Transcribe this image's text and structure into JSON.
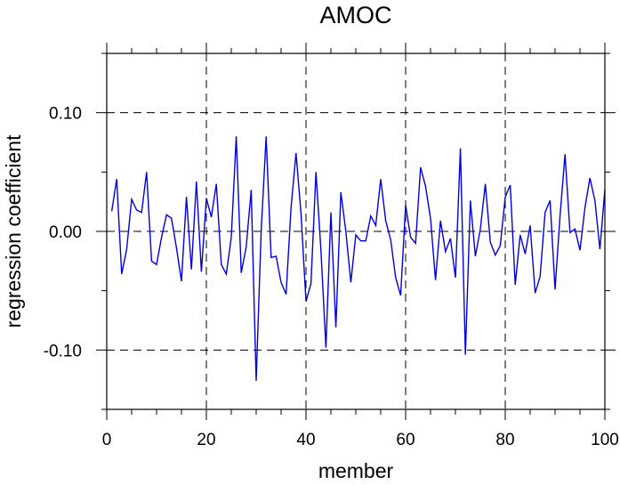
{
  "chart_data": {
    "type": "line",
    "title": "AMOC",
    "xlabel": "member",
    "ylabel": "regression coefficient",
    "xlim": [
      0,
      100
    ],
    "ylim": [
      -0.15,
      0.15
    ],
    "xticks": [
      0,
      20,
      40,
      60,
      80,
      100
    ],
    "xtick_labels": [
      "0",
      "20",
      "40",
      "60",
      "80",
      "100"
    ],
    "yticks": [
      -0.1,
      0.0,
      0.1
    ],
    "ytick_labels": [
      "-0.10",
      "0.00",
      "0.10"
    ],
    "grid": "dashed at major ticks",
    "legend": "none",
    "colors": {
      "line": "#0000dd",
      "grid": "#000000",
      "axes": "#000000"
    },
    "series": [
      {
        "x": [
          1,
          2,
          3,
          4,
          5,
          6,
          7,
          8,
          9,
          10,
          11,
          12,
          13,
          14,
          15,
          16,
          17,
          18,
          19,
          20,
          21,
          22,
          23,
          24,
          25,
          26,
          27,
          28,
          29,
          30,
          31,
          32,
          33,
          34,
          35,
          36,
          37,
          38,
          39,
          40,
          41,
          42,
          43,
          44,
          45,
          46,
          47,
          48,
          49,
          50,
          51,
          52,
          53,
          54,
          55,
          56,
          57,
          58,
          59,
          60,
          61,
          62,
          63,
          64,
          65,
          66,
          67,
          68,
          69,
          70,
          71,
          72,
          73,
          74,
          75,
          76,
          77,
          78,
          79,
          80,
          81,
          82,
          83,
          84,
          85,
          86,
          87,
          88,
          89,
          90,
          91,
          92,
          93,
          94,
          95,
          96,
          97,
          98,
          99,
          100
        ],
        "values": [
          0.017,
          0.044,
          -0.036,
          -0.015,
          0.027,
          0.018,
          0.016,
          0.05,
          -0.025,
          -0.028,
          -0.005,
          0.014,
          0.011,
          -0.014,
          -0.042,
          0.029,
          -0.032,
          0.042,
          -0.034,
          0.028,
          0.012,
          0.04,
          -0.028,
          -0.036,
          -0.005,
          0.08,
          -0.035,
          -0.013,
          0.035,
          -0.126,
          0.0,
          0.08,
          -0.022,
          -0.021,
          -0.043,
          -0.053,
          0.02,
          0.066,
          0.015,
          -0.059,
          -0.044,
          0.05,
          -0.016,
          -0.098,
          0.016,
          -0.081,
          0.033,
          0.0,
          -0.043,
          -0.003,
          -0.008,
          -0.008,
          0.013,
          0.005,
          0.044,
          0.009,
          -0.007,
          -0.039,
          -0.054,
          0.022,
          -0.005,
          -0.01,
          0.054,
          0.038,
          0.011,
          -0.041,
          0.009,
          -0.017,
          -0.006,
          -0.039,
          0.07,
          -0.104,
          0.026,
          -0.021,
          0.002,
          0.04,
          -0.009,
          -0.02,
          -0.012,
          0.029,
          0.039,
          -0.045,
          -0.003,
          -0.019,
          0.005,
          -0.052,
          -0.038,
          0.016,
          0.026,
          -0.049,
          0.013,
          0.065,
          -0.001,
          0.002,
          -0.016,
          0.02,
          0.045,
          0.026,
          -0.015,
          0.035
        ]
      }
    ]
  }
}
